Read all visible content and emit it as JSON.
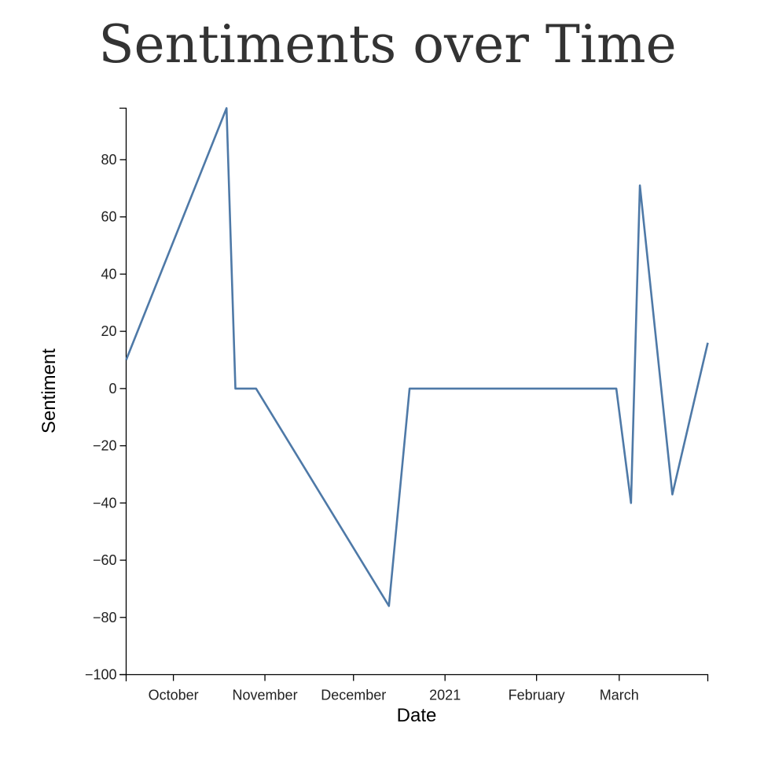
{
  "chart_data": {
    "type": "line",
    "title": "Sentiments over Time",
    "xlabel": "Date",
    "ylabel": "Sentiment",
    "x_scale": "time",
    "xlim": [
      "2020-09-15",
      "2021-03-31"
    ],
    "ylim": [
      -100,
      98
    ],
    "grid": false,
    "legend": "none",
    "line_color": "#4e79a7",
    "x_tick_labels": [
      "October",
      "November",
      "December",
      "2021",
      "February",
      "March"
    ],
    "x_tick_dates": [
      "2020-10-01",
      "2020-11-01",
      "2020-12-01",
      "2021-01-01",
      "2021-02-01",
      "2021-03-01"
    ],
    "y_ticks": [
      80,
      60,
      40,
      20,
      0,
      -20,
      -40,
      -60,
      -80,
      -100
    ],
    "y_tick_labels": [
      "80",
      "60",
      "40",
      "20",
      "0",
      "−20",
      "−40",
      "−60",
      "−80",
      "−100"
    ],
    "series": [
      {
        "x": [
          "2020-09-15",
          "2020-10-19",
          "2020-10-22",
          "2020-10-29",
          "2020-12-13",
          "2020-12-20",
          "2021-02-28",
          "2021-03-05",
          "2021-03-08",
          "2021-03-19",
          "2021-03-31"
        ],
        "values": [
          10,
          98,
          0,
          0,
          -76,
          0,
          0,
          -40,
          71,
          -37,
          16
        ]
      }
    ]
  }
}
